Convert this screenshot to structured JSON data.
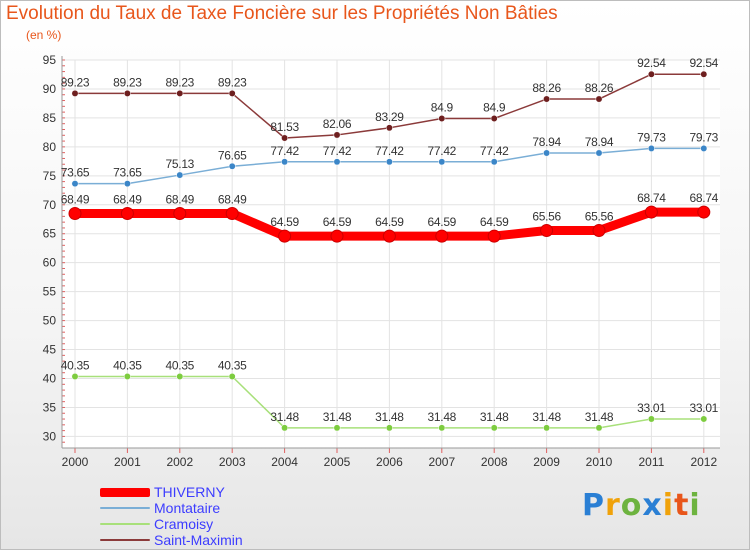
{
  "title": "Evolution du Taux de Taxe Foncière sur les Propriétés Non Bâties",
  "subtitle": "(en %)",
  "logo": {
    "letters": [
      {
        "ch": "P",
        "color": "#2a7fd4"
      },
      {
        "ch": "r",
        "color": "#f0a20a"
      },
      {
        "ch": "o",
        "color": "#6db33f"
      },
      {
        "ch": "x",
        "color": "#2a7fd4"
      },
      {
        "ch": "i",
        "color": "#f0a20a"
      },
      {
        "ch": "t",
        "color": "#e8561b"
      },
      {
        "ch": "i",
        "color": "#6db33f"
      }
    ]
  },
  "chart_data": {
    "type": "line",
    "title": "Evolution du Taux de Taxe Foncière sur les Propriétés Non Bâties",
    "ylabel": "(en %)",
    "xlabel": "",
    "ylim": [
      28,
      95
    ],
    "yticks": [
      30,
      35,
      40,
      45,
      50,
      55,
      60,
      65,
      70,
      75,
      80,
      85,
      90,
      95
    ],
    "grid": true,
    "legend_position": "bottom-left",
    "x": [
      "2000",
      "2001",
      "2002",
      "2003",
      "2004",
      "2005",
      "2006",
      "2007",
      "2008",
      "2009",
      "2010",
      "2011",
      "2012"
    ],
    "series": [
      {
        "name": "THIVERNY",
        "color": "#ff0000",
        "emphasis": true,
        "values": [
          68.49,
          68.49,
          68.49,
          68.49,
          64.59,
          64.59,
          64.59,
          64.59,
          64.59,
          65.56,
          65.56,
          68.74,
          68.74
        ],
        "labels": [
          "68.49",
          "68.49",
          "68.49",
          "68.49",
          "64.59",
          "64.59",
          "64.59",
          "64.59",
          "64.59",
          "65.56",
          "65.56",
          "68.74",
          "68.74"
        ]
      },
      {
        "name": "Montataire",
        "color": "#7aaed6",
        "marker": "#3b86c8",
        "values": [
          73.65,
          73.65,
          75.13,
          76.65,
          77.42,
          77.42,
          77.42,
          77.42,
          77.42,
          78.94,
          78.94,
          79.73,
          79.73
        ],
        "labels": [
          "73.65",
          "73.65",
          "75.13",
          "76.65",
          "77.42",
          "77.42",
          "77.42",
          "77.42",
          "77.42",
          "78.94",
          "78.94",
          "79.73",
          "79.73"
        ]
      },
      {
        "name": "Cramoisy",
        "color": "#a8e07a",
        "marker": "#7dcc3f",
        "values": [
          40.35,
          40.35,
          40.35,
          40.35,
          31.48,
          31.48,
          31.48,
          31.48,
          31.48,
          31.48,
          31.48,
          33.01,
          33.01
        ],
        "labels": [
          "40.35",
          "40.35",
          "40.35",
          "40.35",
          "31.48",
          "31.48",
          "31.48",
          "31.48",
          "31.48",
          "31.48",
          "31.48",
          "33.01",
          "33.01"
        ]
      },
      {
        "name": "Saint-Maximin",
        "color": "#8b3a3a",
        "marker": "#6e1f1f",
        "values": [
          89.23,
          89.23,
          89.23,
          89.23,
          81.53,
          82.06,
          83.29,
          84.9,
          84.9,
          88.26,
          88.26,
          92.54,
          92.54
        ],
        "labels": [
          "89.23",
          "89.23",
          "89.23",
          "89.23",
          "81.53",
          "82.06",
          "83.29",
          "84.9",
          "84.9",
          "88.26",
          "88.26",
          "92.54",
          "92.54"
        ]
      }
    ]
  }
}
